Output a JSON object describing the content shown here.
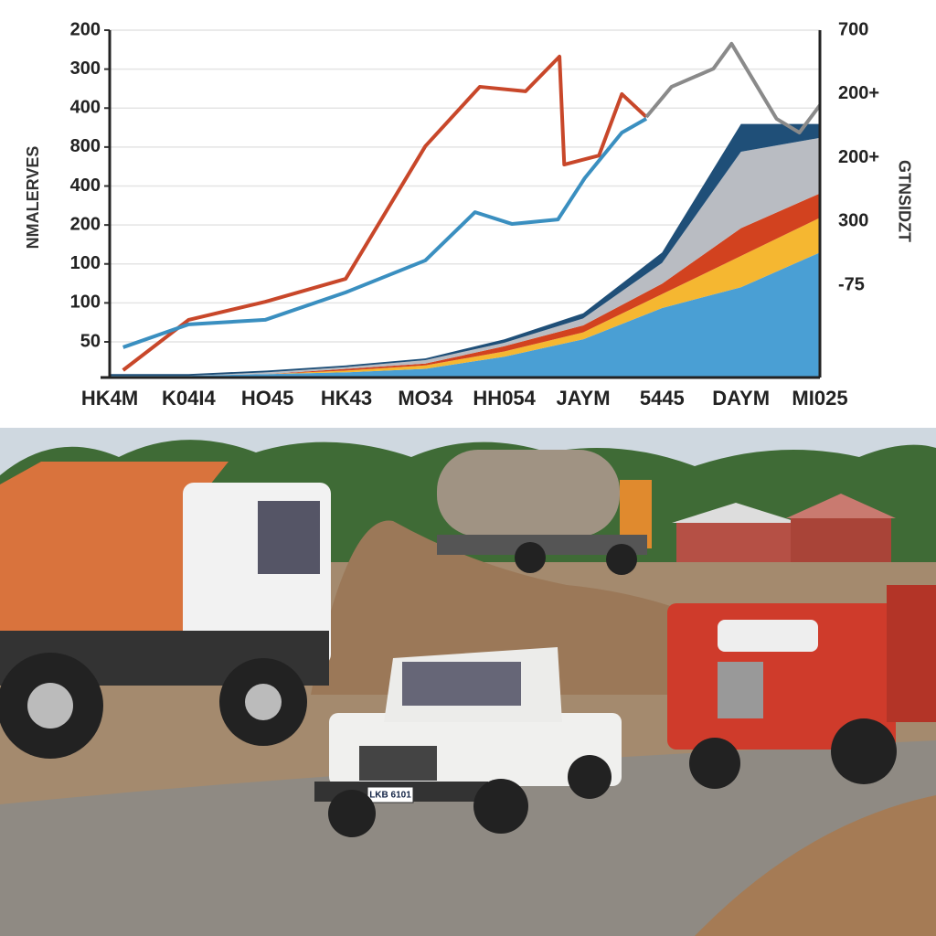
{
  "chart_data": {
    "type": "line",
    "y_title": "NMALERVES",
    "y2_title": "GTNSIDZT",
    "categories": [
      "HK4M",
      "K04I4",
      "HO45",
      "HK43",
      "MO34",
      "HH054",
      "JAYM",
      "5445",
      "DAYM",
      "MI025"
    ],
    "left_axis_labels": [
      "200",
      "300",
      "400",
      "800",
      "400",
      "200",
      "100",
      "100",
      "50"
    ],
    "right_axis_labels": [
      "700",
      "200+",
      "200+",
      "300",
      "-75"
    ],
    "xlim": [
      0,
      9
    ],
    "ylim": [
      0,
      100
    ],
    "grid": true,
    "series": [
      {
        "color": "#c8472a",
        "x": [
          0.17,
          1.0,
          1.97,
          2.99,
          4.0,
          4.69,
          5.27,
          5.7,
          5.76,
          6.2,
          6.49,
          6.8
        ],
        "values": [
          2.1,
          16.6,
          21.8,
          28.4,
          66.6,
          83.7,
          82.4,
          92.4,
          61.3,
          63.9,
          81.6,
          75.0
        ]
      },
      {
        "color": "#3a8fc0",
        "x": [
          0.17,
          1.0,
          1.97,
          2.99,
          4.0,
          4.63,
          5.1,
          5.68,
          6.02,
          6.49,
          6.8
        ],
        "values": [
          8.7,
          15.3,
          16.6,
          24.5,
          33.7,
          47.6,
          44.2,
          45.5,
          57.4,
          70.5,
          74.5
        ]
      },
      {
        "color": "#8a8a8a",
        "x": [
          6.8,
          7.12,
          7.65,
          7.88,
          8.45,
          8.74,
          9.0
        ],
        "values": [
          75.0,
          83.7,
          88.9,
          96.1,
          74.5,
          70.5,
          78.4
        ]
      }
    ],
    "stacked_areas": [
      {
        "color": "#4a9fd4",
        "values": [
          0.5,
          0.5,
          1,
          1.5,
          2.5,
          6,
          11,
          20,
          26,
          36
        ]
      },
      {
        "color": "#f5b731",
        "values": [
          0,
          0,
          0,
          0.5,
          1,
          1.5,
          2,
          4,
          9,
          10
        ]
      },
      {
        "color": "#d2421f",
        "values": [
          0,
          0,
          0,
          0.5,
          0.5,
          1.5,
          2,
          3,
          8,
          7
        ]
      },
      {
        "color": "#b9bcc2",
        "values": [
          0,
          0,
          0.5,
          0.5,
          1,
          1,
          2,
          6,
          22,
          16
        ]
      },
      {
        "color": "#1f4f78",
        "values": [
          0.5,
          0.5,
          0.5,
          0.5,
          0.5,
          1,
          1.5,
          3,
          8,
          4
        ]
      }
    ]
  },
  "photo": {
    "plate_text": "LKB 6101"
  }
}
